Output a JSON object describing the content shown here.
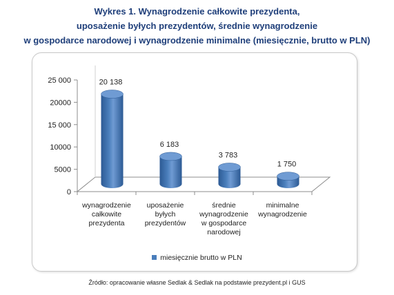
{
  "title_lines": [
    "Wykres 1. Wynagrodzenie całkowite prezydenta,",
    "uposażenie byłych prezydentów, średnie wynagrodzenie",
    "w gospodarce narodowej i wynagrodzenie minimalne (miesięcznie, brutto w PLN)"
  ],
  "source": "Źródło: opracowanie własne Sedlak & Sedlak na podstawie prezydent.pl i GUS",
  "chart_data": {
    "type": "bar",
    "categories": [
      [
        "wynagrodzenie",
        "całkowite",
        "prezydenta"
      ],
      [
        "uposażenie",
        "byłych",
        "prezydentów"
      ],
      [
        "średnie",
        "wynagrodzenie",
        "w gospodarce",
        "narodowej"
      ],
      [
        "minimalne",
        "wynagrodzenie"
      ]
    ],
    "series": [
      {
        "name": "miesięcznie brutto w PLN",
        "values": [
          20138,
          6183,
          3783,
          1750
        ],
        "data_labels": [
          "20 138",
          "6 183",
          "3 783",
          "1 750"
        ]
      }
    ],
    "ylim": [
      0,
      25000
    ],
    "yticks": [
      0,
      5000,
      10000,
      15000,
      20000,
      25000
    ],
    "ytick_labels": [
      "0",
      "5000",
      "10000",
      "15 000",
      "20000",
      "25 000"
    ],
    "legend_position": "bottom",
    "grid": false,
    "colors": {
      "bar": "#4a7ebb",
      "bar_dark": "#2c5a94",
      "bar_light": "#6f9bd3",
      "axis": "#8c8c8c",
      "title": "#1f3f7a"
    }
  }
}
